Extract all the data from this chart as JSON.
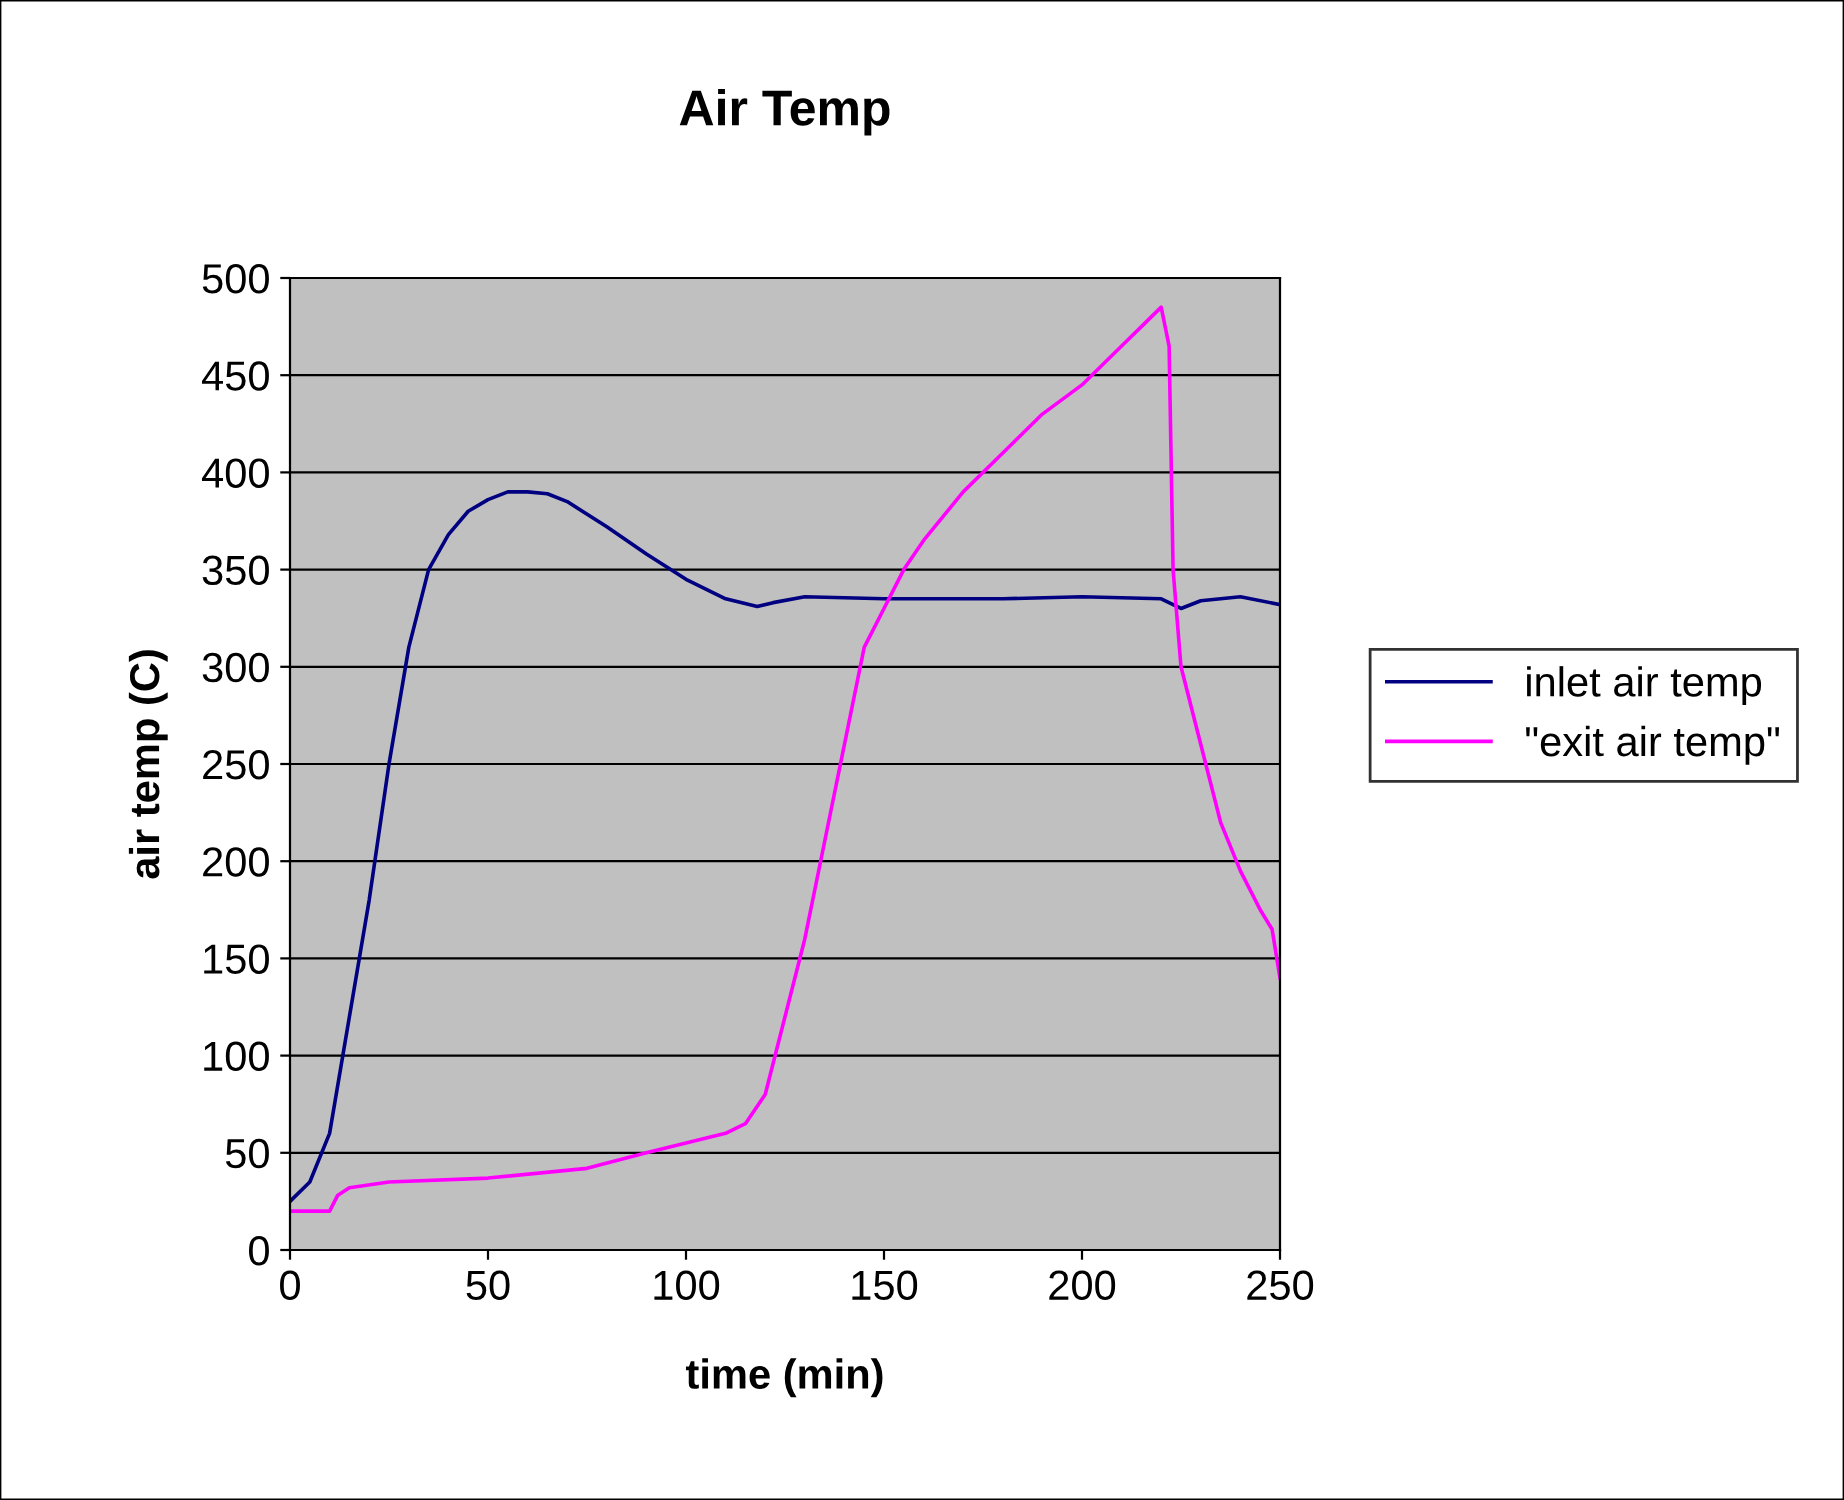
{
  "chart_data": {
    "type": "line",
    "title": "Air Temp",
    "xlabel": "time (min)",
    "ylabel": "air temp (C)",
    "xlim": [
      0,
      250
    ],
    "xticks": [
      0,
      50,
      100,
      150,
      200,
      250
    ],
    "ylim": [
      0,
      500
    ],
    "yticks": [
      0,
      50,
      100,
      150,
      200,
      250,
      300,
      350,
      400,
      450,
      500
    ],
    "grid": "y",
    "legend": "right",
    "marker": "none",
    "line_style": "solid",
    "series": [
      {
        "name": "inlet air temp",
        "color": "#000080",
        "x": [
          0,
          5,
          10,
          15,
          20,
          25,
          30,
          35,
          40,
          45,
          50,
          55,
          60,
          65,
          70,
          80,
          90,
          100,
          110,
          118,
          122,
          130,
          150,
          180,
          200,
          220,
          225,
          230,
          240,
          250
        ],
        "values": [
          25,
          35,
          60,
          120,
          180,
          250,
          310,
          350,
          368,
          380,
          386,
          390,
          390,
          389,
          385,
          372,
          358,
          345,
          335,
          331,
          333,
          336,
          335,
          335,
          336,
          335,
          330,
          334,
          336,
          332
        ]
      },
      {
        "name": "\"exit air temp\"",
        "color": "#ff00ff",
        "x": [
          0,
          10,
          12,
          15,
          25,
          50,
          75,
          90,
          110,
          115,
          120,
          125,
          130,
          135,
          140,
          145,
          150,
          155,
          160,
          170,
          180,
          190,
          200,
          210,
          215,
          220,
          222,
          223,
          225,
          230,
          235,
          240,
          245,
          248,
          250
        ],
        "values": [
          20,
          20,
          28,
          32,
          35,
          37,
          42,
          50,
          60,
          65,
          80,
          120,
          160,
          210,
          260,
          310,
          330,
          350,
          365,
          390,
          410,
          430,
          445,
          465,
          475,
          485,
          465,
          350,
          300,
          260,
          220,
          195,
          175,
          165,
          140
        ]
      }
    ]
  }
}
